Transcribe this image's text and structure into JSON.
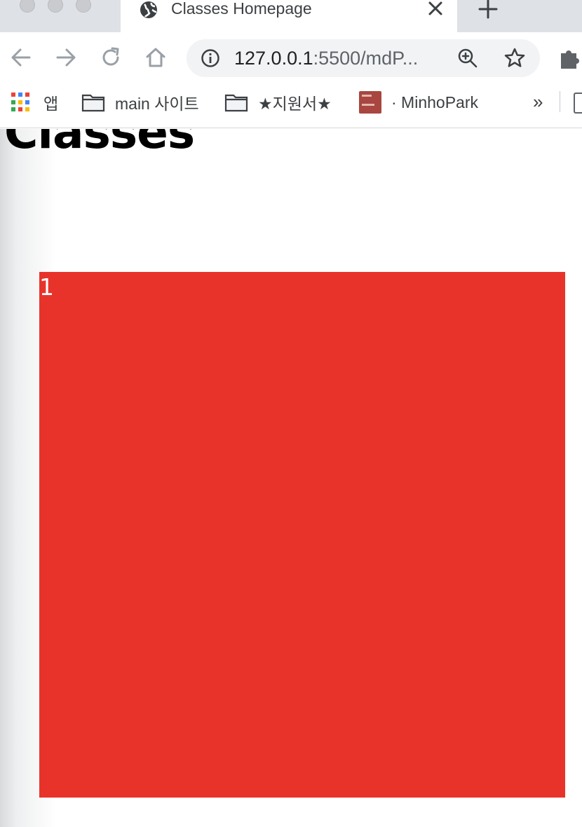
{
  "browser": {
    "tab": {
      "title": "Classes Homepage",
      "icon": "globe-icon"
    },
    "address_bar": {
      "url_host": "127.0.0.1",
      "url_rest": ":5500/mdP..."
    },
    "bookmarks": [
      {
        "label": "앱",
        "icon": "apps-grid-icon"
      },
      {
        "label": "main 사이트",
        "icon": "folder-icon"
      },
      {
        "label": "★지원서★",
        "icon": "folder-icon"
      },
      {
        "label": "· MinhoPark",
        "icon": "blog-favicon"
      }
    ],
    "bookmarks_overflow": "»"
  },
  "page": {
    "heading": "Classes",
    "box": {
      "label": "1",
      "color": "#e8332a"
    }
  },
  "colors": {
    "tabstrip": "#dee1e6",
    "omnibox": "#f1f3f4",
    "icon": "#5f6368"
  }
}
